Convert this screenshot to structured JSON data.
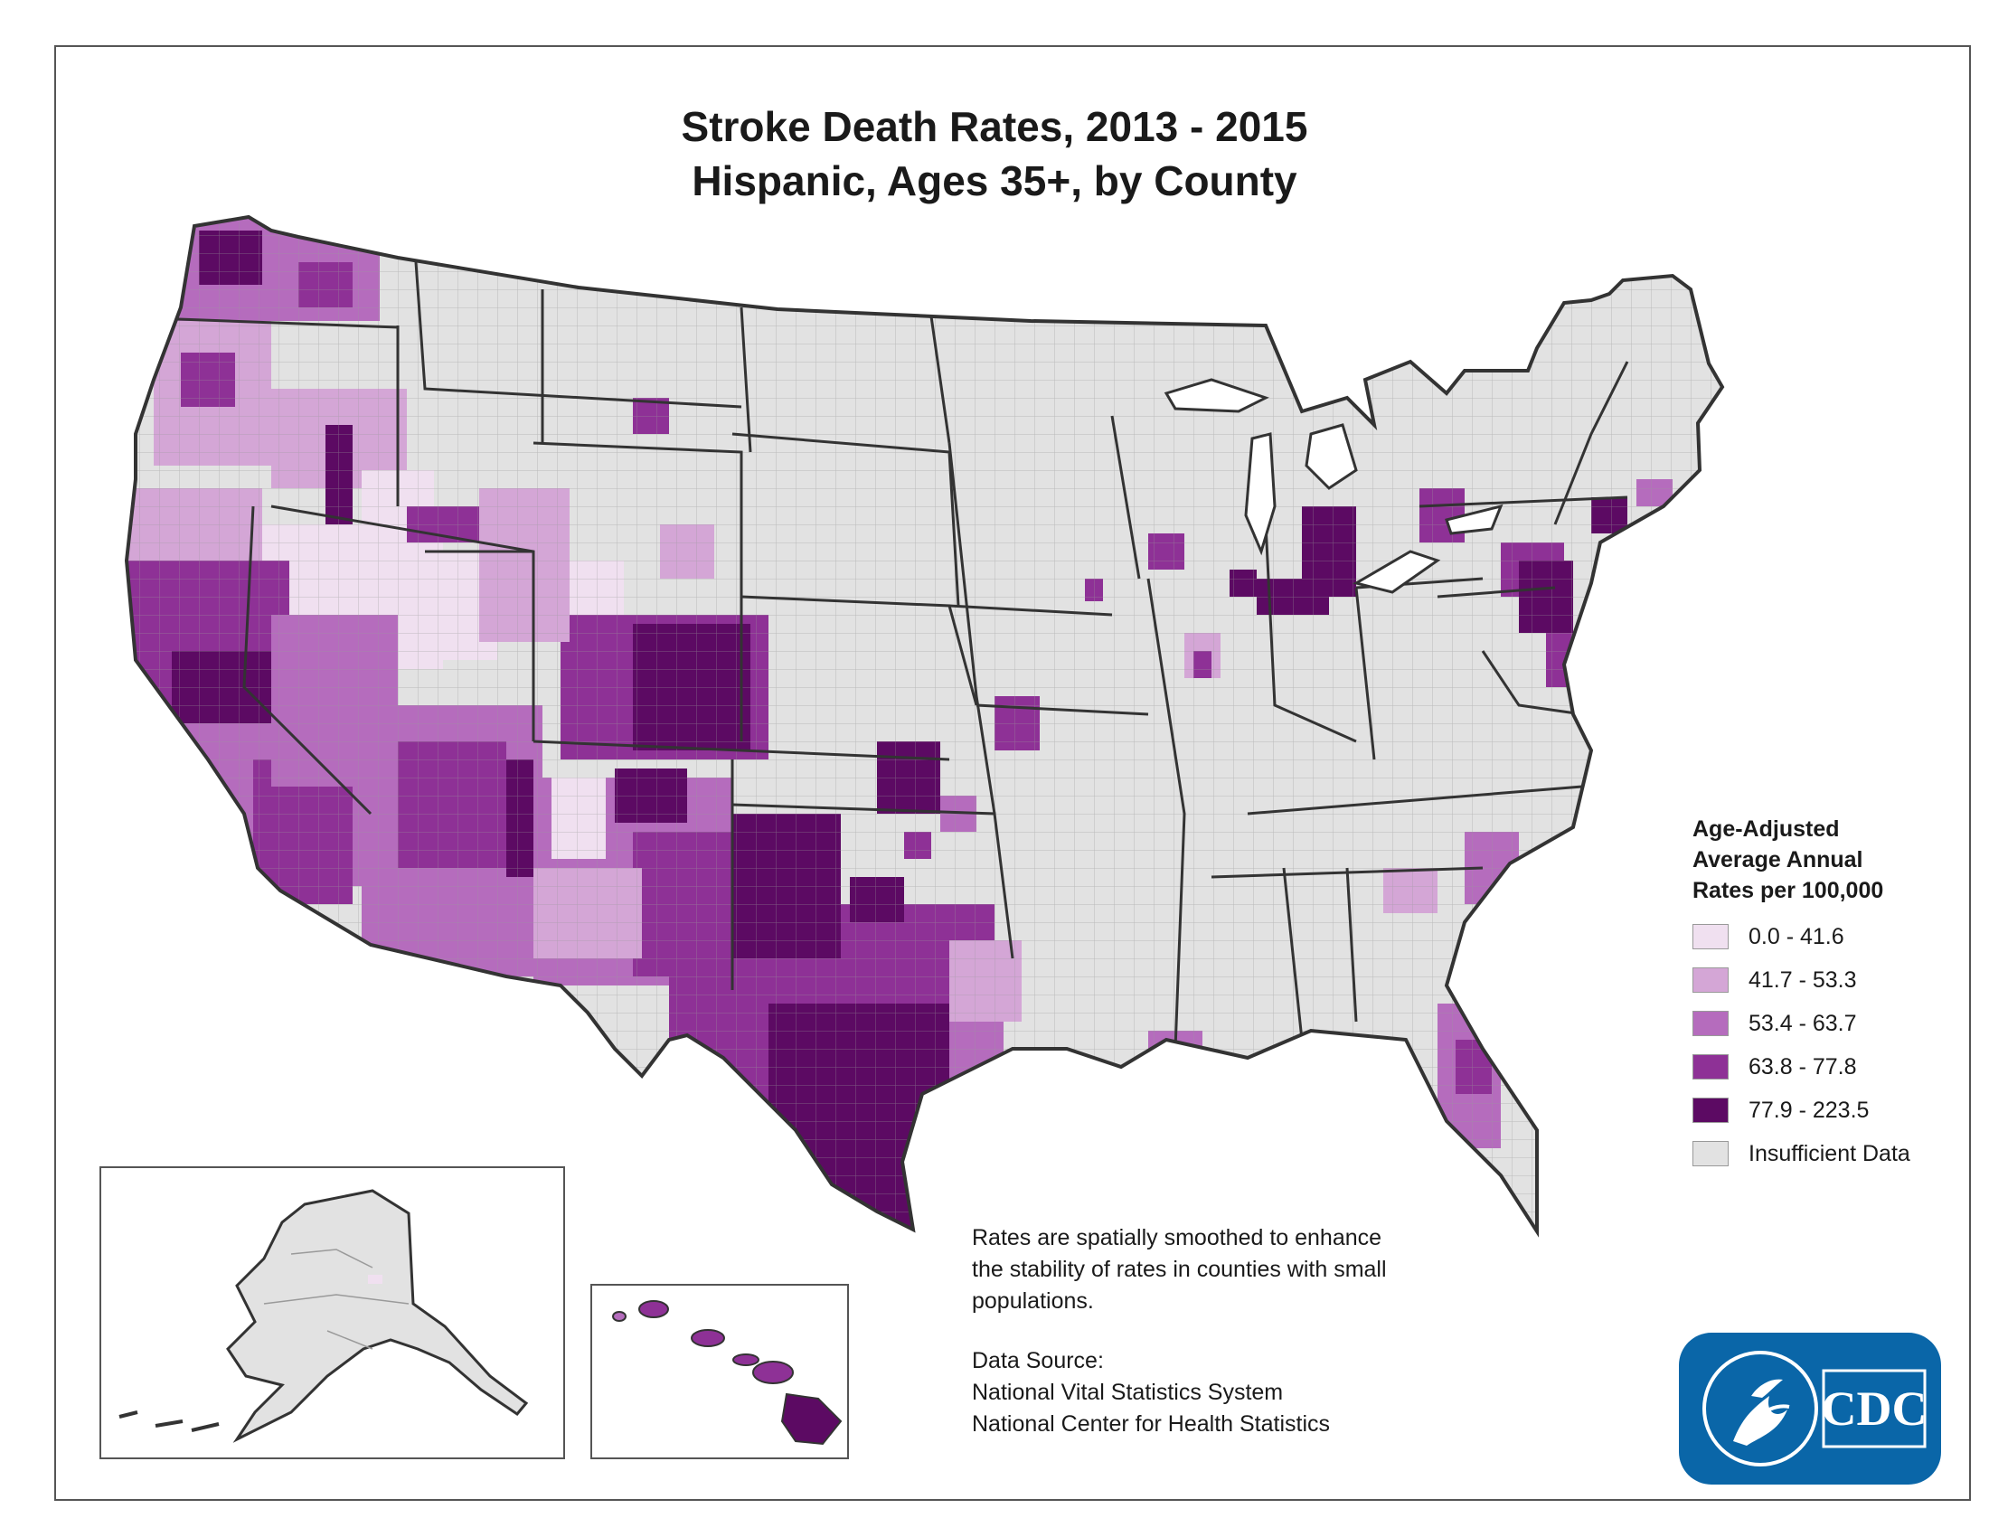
{
  "title": {
    "line1": "Stroke Death Rates, 2013 - 2015",
    "line2": "Hispanic, Ages 35+, by County"
  },
  "legend": {
    "title_lines": [
      "Age-Adjusted",
      "Average Annual",
      "Rates per 100,000"
    ],
    "items": [
      {
        "label": "0.0 - 41.6",
        "color": "#f0e0f0"
      },
      {
        "label": "41.7 - 53.3",
        "color": "#d4a6d6"
      },
      {
        "label": "53.4 - 63.7",
        "color": "#b56cbd"
      },
      {
        "label": "63.8 - 77.8",
        "color": "#8e3196"
      },
      {
        "label": "77.9 - 223.5",
        "color": "#5c0a63"
      },
      {
        "label": "Insufficient Data",
        "color": "#e2e2e2"
      }
    ]
  },
  "note": {
    "lines": [
      "Rates are spatially smoothed to enhance",
      "the stability of rates in counties with small",
      "populations."
    ]
  },
  "source": {
    "heading": "Data Source:",
    "lines": [
      "National Vital Statistics System",
      "National Center for Health Statistics"
    ]
  },
  "logo": {
    "text": "CDC",
    "icon": "hhs-eagle-icon"
  },
  "map": {
    "regions": [
      "Contiguous United States",
      "Alaska",
      "Hawaii"
    ],
    "colors": {
      "insufficient": "#e2e2e2",
      "border": "#333333",
      "county_line": "#9a9a9a"
    }
  }
}
